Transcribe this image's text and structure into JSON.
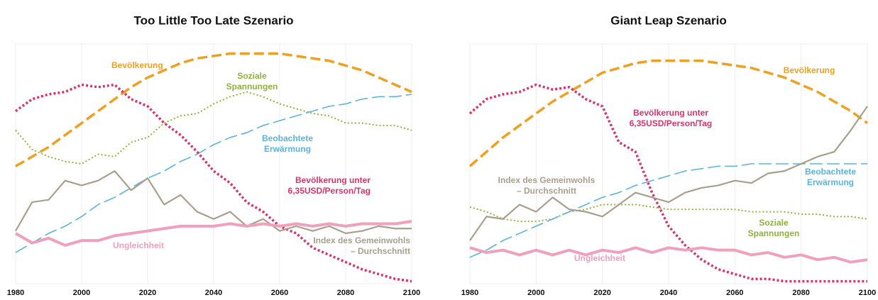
{
  "chart_data": [
    {
      "type": "line",
      "title": "Too Little Too Late Szenario",
      "x": [
        1980,
        1985,
        1990,
        1995,
        2000,
        2005,
        2010,
        2015,
        2020,
        2025,
        2030,
        2035,
        2040,
        2045,
        2050,
        2055,
        2060,
        2065,
        2070,
        2075,
        2080,
        2085,
        2090,
        2095,
        2100
      ],
      "xlim": [
        1980,
        2100
      ],
      "xticks": [
        1980,
        2000,
        2020,
        2040,
        2060,
        2080,
        2100
      ],
      "ylim": [
        0,
        100
      ],
      "grid": true,
      "series": [
        {
          "name": "Bevölkerung",
          "color": "#f0a020",
          "style": "dashed",
          "values": [
            49,
            53,
            57,
            62,
            67,
            72,
            77,
            82,
            86,
            89,
            92,
            94,
            95,
            96,
            96,
            96,
            96,
            95,
            94,
            93,
            91,
            89,
            86,
            83,
            80
          ]
        },
        {
          "name": "Soziale Spannungen",
          "color": "#8db33a",
          "style": "dotted",
          "values": [
            64,
            56,
            53,
            51,
            50,
            54,
            53,
            59,
            61,
            67,
            70,
            71,
            75,
            78,
            80,
            78,
            75,
            73,
            71,
            70,
            67,
            67,
            66,
            66,
            64
          ]
        },
        {
          "name": "Beobachtete Erwärmung",
          "color": "#5ab4e0",
          "style": "longdash",
          "values": [
            13,
            17,
            21,
            24,
            28,
            33,
            36,
            40,
            44,
            47,
            51,
            54,
            58,
            61,
            63,
            66,
            68,
            70,
            72,
            74,
            75,
            77,
            78,
            78,
            79
          ]
        },
        {
          "name": "Bevölkerung unter 6,35USD/Person/Tag",
          "color": "#d9336b",
          "style": "dotted-thick",
          "values": [
            72,
            77,
            79,
            80,
            83,
            82,
            83,
            77,
            74,
            67,
            62,
            55,
            47,
            42,
            34,
            30,
            24,
            21,
            15,
            12,
            9,
            6,
            4,
            2,
            1
          ]
        },
        {
          "name": "Index des Gemeinwohls – Durchschnitt",
          "color": "#a89f8c",
          "style": "solid",
          "values": [
            22,
            34,
            35,
            43,
            41,
            43,
            47,
            39,
            44,
            33,
            37,
            30,
            27,
            30,
            24,
            27,
            22,
            24,
            22,
            24,
            21,
            22,
            24,
            23,
            23
          ]
        },
        {
          "name": "Ungleichheit",
          "color": "#f0a0bc",
          "style": "thick",
          "values": [
            21,
            17,
            19,
            16,
            18,
            18,
            20,
            21,
            22,
            23,
            24,
            24,
            24,
            25,
            24,
            25,
            24,
            25,
            24,
            25,
            24,
            25,
            25,
            25,
            26
          ]
        }
      ]
    },
    {
      "type": "line",
      "title": "Giant Leap Szenario",
      "x": [
        1980,
        1985,
        1990,
        1995,
        2000,
        2005,
        2010,
        2015,
        2020,
        2025,
        2030,
        2035,
        2040,
        2045,
        2050,
        2055,
        2060,
        2065,
        2070,
        2075,
        2080,
        2085,
        2090,
        2095,
        2100
      ],
      "xlim": [
        1980,
        2100
      ],
      "xticks": [
        1980,
        2000,
        2020,
        2040,
        2060,
        2080,
        2100
      ],
      "ylim": [
        0,
        100
      ],
      "grid": true,
      "series": [
        {
          "name": "Bevölkerung",
          "color": "#f0a020",
          "style": "dashed",
          "values": [
            49,
            55,
            61,
            66,
            71,
            76,
            80,
            84,
            88,
            90,
            92,
            93,
            93,
            93,
            93,
            92,
            91,
            90,
            88,
            86,
            83,
            80,
            76,
            72,
            67
          ]
        },
        {
          "name": "Soziale Spannungen",
          "color": "#8db33a",
          "style": "dotted",
          "values": [
            32,
            30,
            27,
            26,
            26,
            27,
            30,
            31,
            33,
            33,
            33,
            32,
            31,
            31,
            31,
            31,
            31,
            30,
            30,
            30,
            29,
            29,
            28,
            28,
            27
          ]
        },
        {
          "name": "Beobachtete Erwärmung",
          "color": "#5ab4e0",
          "style": "longdash",
          "values": [
            11,
            14,
            18,
            21,
            24,
            27,
            30,
            33,
            36,
            38,
            41,
            43,
            45,
            47,
            48,
            49,
            49,
            50,
            50,
            50,
            50,
            50,
            50,
            50,
            50
          ]
        },
        {
          "name": "Bevölkerung unter 6,35USD/Person/Tag",
          "color": "#d9336b",
          "style": "dotted-thick",
          "values": [
            71,
            77,
            79,
            80,
            83,
            81,
            82,
            77,
            74,
            59,
            55,
            38,
            24,
            16,
            10,
            6,
            4,
            2,
            2,
            1,
            1,
            1,
            1,
            1,
            1
          ]
        },
        {
          "name": "Index des Gemeinwohls – Durchschnitt",
          "color": "#a89f8c",
          "style": "solid",
          "values": [
            18,
            28,
            27,
            33,
            30,
            36,
            31,
            30,
            28,
            33,
            38,
            36,
            34,
            38,
            40,
            41,
            43,
            42,
            46,
            47,
            50,
            53,
            55,
            64,
            74
          ]
        },
        {
          "name": "Ungleichheit",
          "color": "#f0a0bc",
          "style": "thick",
          "values": [
            15,
            13,
            14,
            12,
            14,
            12,
            14,
            12,
            14,
            13,
            15,
            13,
            15,
            14,
            15,
            14,
            14,
            12,
            13,
            11,
            12,
            10,
            11,
            9,
            10
          ]
        }
      ]
    }
  ]
}
